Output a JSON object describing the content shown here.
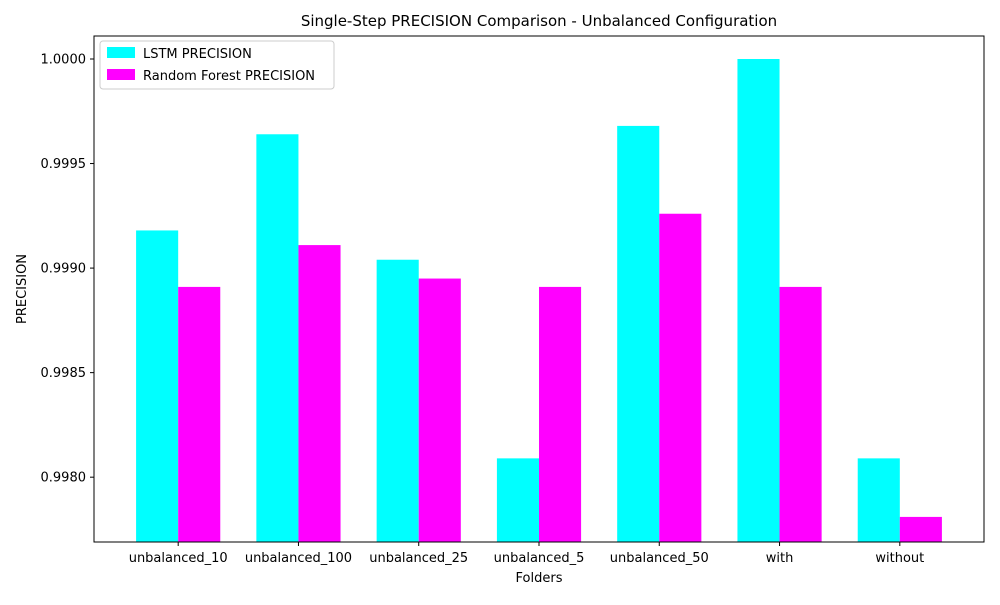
{
  "chart_data": {
    "type": "bar",
    "title": "Single-Step PRECISION Comparison - Unbalanced Configuration",
    "xlabel": "Folders",
    "ylabel": "PRECISION",
    "categories": [
      "unbalanced_10",
      "unbalanced_100",
      "unbalanced_25",
      "unbalanced_5",
      "unbalanced_50",
      "with",
      "without"
    ],
    "series": [
      {
        "name": "LSTM PRECISION",
        "color": "#00ffff",
        "values": [
          0.99918,
          0.99964,
          0.99904,
          0.99809,
          0.99968,
          1.0,
          0.99809
        ]
      },
      {
        "name": "Random Forest PRECISION",
        "color": "#ff00ff",
        "values": [
          0.99891,
          0.99911,
          0.99895,
          0.99891,
          0.99926,
          0.99891,
          0.99781
        ]
      }
    ],
    "ylim": [
      0.99769,
      1.00011
    ],
    "yticks": [
      0.998,
      0.9985,
      0.999,
      0.9995,
      1.0
    ],
    "ytick_labels": [
      "0.9980",
      "0.9985",
      "0.9990",
      "0.9995",
      "1.0000"
    ],
    "grid": false,
    "legend_position": "top-left"
  }
}
